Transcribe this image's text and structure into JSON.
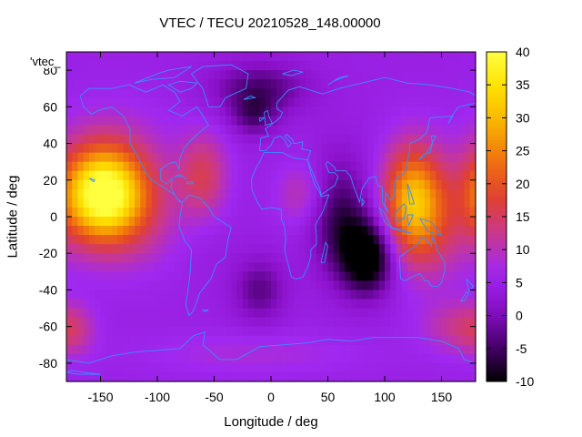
{
  "chart_data": {
    "type": "heatmap",
    "title": "VTEC / TECU 20210528_148.00000",
    "xlabel": "Longitude / deg",
    "ylabel": "Latitude / deg",
    "key_title": "'vtec_",
    "xlim": [
      -180,
      180
    ],
    "ylim": [
      -90,
      90
    ],
    "x_ticks": [
      -150,
      -100,
      -50,
      0,
      50,
      100,
      150
    ],
    "y_ticks": [
      -80,
      -60,
      -40,
      -20,
      0,
      20,
      40,
      60,
      80
    ],
    "colorbar": {
      "min": -10,
      "max": 40,
      "ticks": [
        -10,
        -5,
        0,
        5,
        10,
        15,
        20,
        25,
        30,
        35,
        40
      ]
    },
    "palette": [
      "#000000",
      "#4a0070",
      "#8a10c8",
      "#a028f0",
      "#c83890",
      "#e04030",
      "#f07010",
      "#f8b000",
      "#ffe000",
      "#ffff40"
    ],
    "coastline_color": "#3a8cff",
    "grid": false,
    "features": [
      {
        "lon": -148,
        "lat": 12,
        "value": 38,
        "sx": 25,
        "sy": 17
      },
      {
        "lon": -140,
        "lat": 20,
        "value": 12,
        "sx": 38,
        "sy": 25
      },
      {
        "lon": -60,
        "lat": 22,
        "value": 15,
        "sx": 15,
        "sy": 16
      },
      {
        "lon": -115,
        "lat": -5,
        "value": 8,
        "sx": 30,
        "sy": 18
      },
      {
        "lon": -60,
        "lat": -10,
        "value": 4,
        "sx": 22,
        "sy": 18
      },
      {
        "lon": 28,
        "lat": 12,
        "value": 11,
        "sx": 16,
        "sy": 12
      },
      {
        "lon": 125,
        "lat": 10,
        "value": 28,
        "sx": 18,
        "sy": 20
      },
      {
        "lon": 140,
        "lat": -8,
        "value": 12,
        "sx": 24,
        "sy": 20
      },
      {
        "lon": 85,
        "lat": -22,
        "value": -14,
        "sx": 16,
        "sy": 14
      },
      {
        "lon": 60,
        "lat": 0,
        "value": -6,
        "sx": 18,
        "sy": 22
      },
      {
        "lon": -10,
        "lat": 70,
        "value": -4,
        "sx": 30,
        "sy": 10
      },
      {
        "lon": -15,
        "lat": 55,
        "value": -3,
        "sx": 14,
        "sy": 8
      },
      {
        "lon": -175,
        "lat": -62,
        "value": 12,
        "sx": 14,
        "sy": 10
      },
      {
        "lon": 160,
        "lat": -60,
        "value": 11,
        "sx": 20,
        "sy": 10
      },
      {
        "lon": -15,
        "lat": -75,
        "value": 8,
        "sx": 70,
        "sy": 8
      },
      {
        "lon": -10,
        "lat": -40,
        "value": -3,
        "sx": 16,
        "sy": 12
      }
    ],
    "background_value": 5
  }
}
